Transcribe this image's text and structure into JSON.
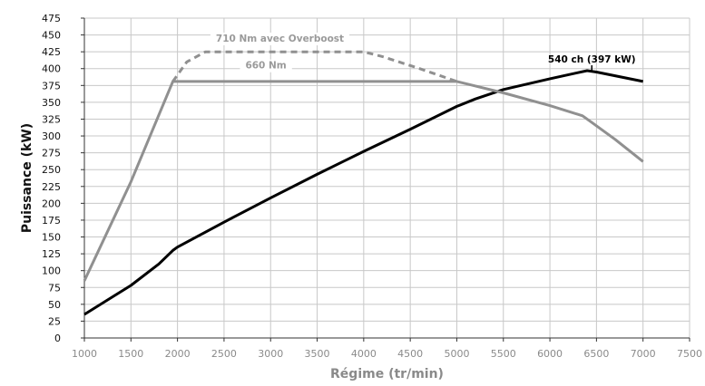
{
  "chart_data": {
    "type": "line",
    "xlabel": "Régime (tr/min)",
    "ylabel": "Puissance (kW)",
    "xlim": [
      1000,
      7500
    ],
    "ylim": [
      0,
      475
    ],
    "xticks": [
      1000,
      1500,
      2000,
      2500,
      3000,
      3500,
      4000,
      4500,
      5000,
      5500,
      6000,
      6500,
      7000,
      7500
    ],
    "yticks": [
      0,
      25,
      50,
      75,
      100,
      125,
      150,
      175,
      200,
      225,
      250,
      275,
      300,
      325,
      350,
      375,
      400,
      425,
      450,
      475
    ],
    "grid": true,
    "series": [
      {
        "name": "",
        "color": "#000000",
        "style": "solid",
        "x": [
          1000,
          1500,
          1800,
          1950,
          2000,
          2500,
          3000,
          3500,
          4000,
          4500,
          5000,
          5200,
          5500,
          6000,
          6300,
          6400,
          6500,
          7000
        ],
        "y": [
          35,
          78,
          110,
          130,
          135,
          172,
          208,
          243,
          277,
          310,
          344,
          355,
          369,
          385,
          394,
          397,
          395,
          381
        ]
      },
      {
        "name": "",
        "color": "#909090",
        "style": "solid",
        "x": [
          1000,
          1500,
          1950,
          5000,
          5500,
          6000,
          6350,
          6450,
          6700,
          7000
        ],
        "y": [
          85,
          232,
          381,
          381,
          364,
          345,
          330,
          320,
          295,
          262
        ]
      },
      {
        "name": "",
        "color": "#909090",
        "style": "dashed",
        "x": [
          1950,
          2100,
          2300,
          3000,
          3500,
          4000,
          4200,
          4600,
          5000
        ],
        "y": [
          381,
          410,
          425,
          425,
          425,
          425,
          418,
          400,
          381
        ]
      }
    ],
    "annotations": [
      {
        "text": "710 Nm avec Overboost",
        "x": 3100,
        "y": 440,
        "color": "#9a9a9a"
      },
      {
        "text": "660 Nm",
        "x": 2950,
        "y": 400,
        "color": "#9a9a9a"
      },
      {
        "text": "540 ch (397 kW)",
        "x": 6450,
        "y": 409,
        "color": "#000000"
      }
    ]
  }
}
